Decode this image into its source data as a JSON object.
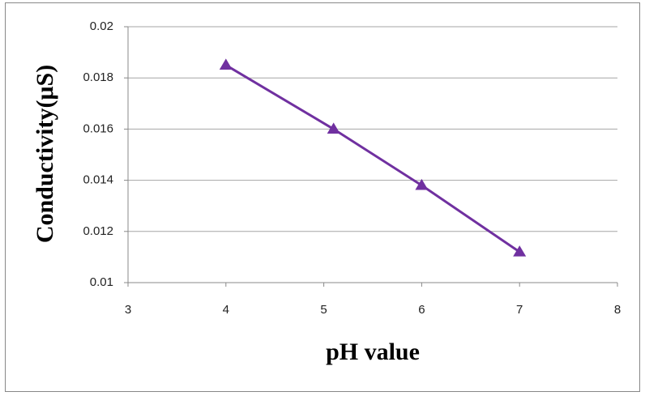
{
  "chart_data": {
    "type": "line",
    "x_label": "pH value",
    "y_label": "Conductivity(μS)",
    "x": [
      4,
      5.1,
      6,
      7
    ],
    "series": [
      {
        "color": "#7030a0",
        "values": [
          0.0185,
          0.016,
          0.0138,
          0.0112
        ]
      }
    ],
    "xlim": [
      3,
      8
    ],
    "xticks": [
      3,
      4,
      5,
      6,
      7,
      8
    ],
    "ylim": [
      0.01,
      0.02
    ],
    "yticks": [
      0.01,
      0.012,
      0.014,
      0.016,
      0.018,
      0.02
    ],
    "grid": true,
    "marker": "triangle"
  }
}
